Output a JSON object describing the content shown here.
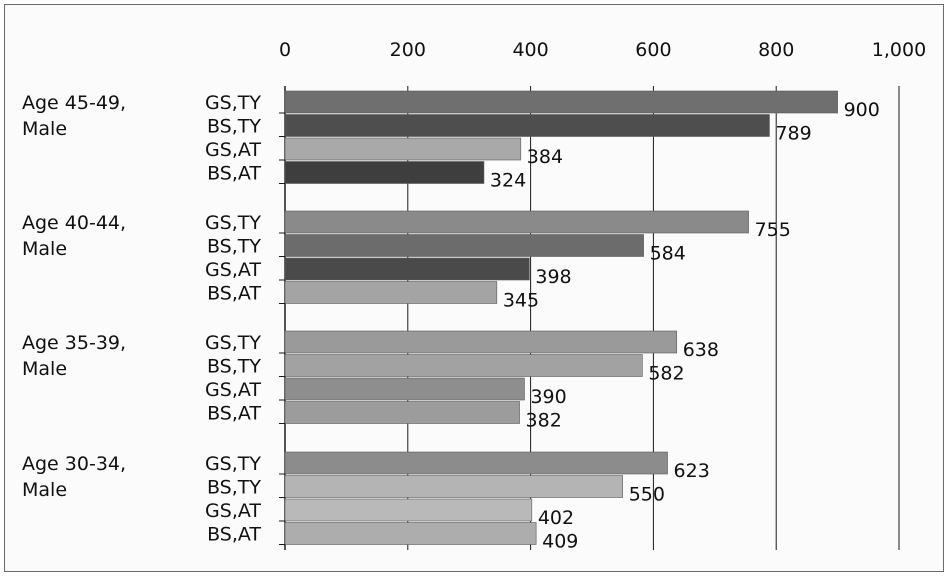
{
  "chart_data": {
    "type": "bar",
    "orientation": "horizontal",
    "title": "",
    "xlabel": "",
    "ylabel": "",
    "xlim": [
      0,
      1000
    ],
    "x_ticks": [
      0,
      200,
      400,
      600,
      800,
      1000
    ],
    "x_tick_labels": [
      "0",
      "200",
      "400",
      "600",
      "800",
      "1,000"
    ],
    "grid": "vertical",
    "legend": "none",
    "groups": [
      {
        "label_line1": "Age 45-49,",
        "label_line2": "Male",
        "bars": [
          {
            "category": "GS,TY",
            "value": 900,
            "value_label": "900",
            "color": "#6f6f6f"
          },
          {
            "category": "BS,TY",
            "value": 789,
            "value_label": "789",
            "color": "#4e4e4e"
          },
          {
            "category": "GS,AT",
            "value": 384,
            "value_label": "384",
            "color": "#a9a9a9"
          },
          {
            "category": "BS,AT",
            "value": 324,
            "value_label": "324",
            "color": "#3e3e3e"
          }
        ]
      },
      {
        "label_line1": "Age 40-44,",
        "label_line2": "Male",
        "bars": [
          {
            "category": "GS,TY",
            "value": 755,
            "value_label": "755",
            "color": "#8a8a8a"
          },
          {
            "category": "BS,TY",
            "value": 584,
            "value_label": "584",
            "color": "#6c6c6c"
          },
          {
            "category": "GS,AT",
            "value": 398,
            "value_label": "398",
            "color": "#4a4a4a"
          },
          {
            "category": "BS,AT",
            "value": 345,
            "value_label": "345",
            "color": "#a4a4a4"
          }
        ]
      },
      {
        "label_line1": "Age 35-39,",
        "label_line2": "Male",
        "bars": [
          {
            "category": "GS,TY",
            "value": 638,
            "value_label": "638",
            "color": "#9a9a9a"
          },
          {
            "category": "BS,TY",
            "value": 582,
            "value_label": "582",
            "color": "#a2a2a2"
          },
          {
            "category": "GS,AT",
            "value": 390,
            "value_label": "390",
            "color": "#8e8e8e"
          },
          {
            "category": "BS,AT",
            "value": 382,
            "value_label": "382",
            "color": "#9c9c9c"
          }
        ]
      },
      {
        "label_line1": "Age 30-34,",
        "label_line2": "Male",
        "bars": [
          {
            "category": "GS,TY",
            "value": 623,
            "value_label": "623",
            "color": "#8c8c8c"
          },
          {
            "category": "BS,TY",
            "value": 550,
            "value_label": "550",
            "color": "#b4b4b4"
          },
          {
            "category": "GS,AT",
            "value": 402,
            "value_label": "402",
            "color": "#b9b9b9"
          },
          {
            "category": "BS,AT",
            "value": 409,
            "value_label": "409",
            "color": "#adadad"
          }
        ]
      }
    ]
  }
}
